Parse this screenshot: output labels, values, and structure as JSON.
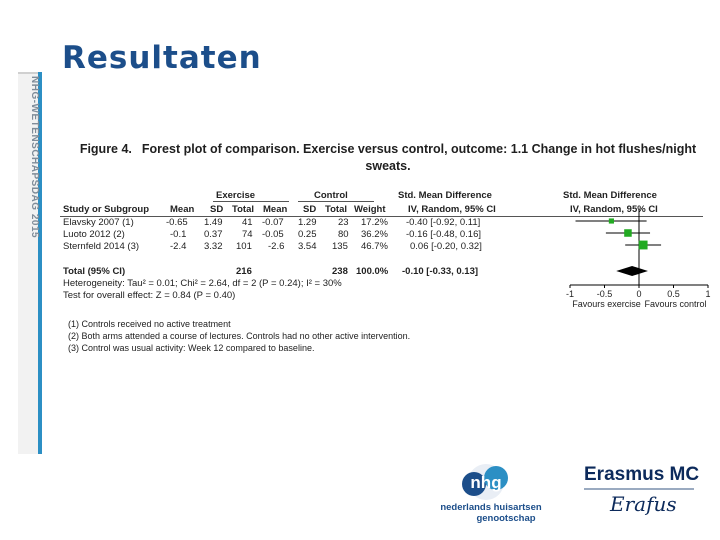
{
  "slide": {
    "title": "Resultaten",
    "sidebar_text": "NHG-WETENSCHAPSDAG 2015"
  },
  "figure": {
    "label": "Figure 4.",
    "title_line1": "Forest plot of comparison. Exercise versus control, outcome: 1.1 Change in hot flushes/night",
    "title_line2": "sweats.",
    "group_exercise": "Exercise",
    "group_control": "Control",
    "smd_header": "Std. Mean Difference",
    "smd_header_plot": "Std. Mean Difference",
    "columns": [
      "Study or Subgroup",
      "Mean",
      "SD",
      "Total",
      "Mean",
      "SD",
      "Total",
      "Weight",
      "IV, Random, 95% CI",
      "IV, Random, 95% CI"
    ],
    "studies": [
      {
        "name": "Elavsky 2007 (1)",
        "ex_mean": "-0.65",
        "ex_sd": "1.49",
        "ex_total": "41",
        "c_mean": "-0.07",
        "c_sd": "1.29",
        "c_total": "23",
        "weight": "17.2%",
        "ci": "-0.40 [-0.92, 0.11]",
        "est": -0.4,
        "lo": -0.92,
        "hi": 0.11,
        "w": 17.2
      },
      {
        "name": "Luoto 2012 (2)",
        "ex_mean": "-0.1",
        "ex_sd": "0.37",
        "ex_total": "74",
        "c_mean": "-0.05",
        "c_sd": "0.25",
        "c_total": "80",
        "weight": "36.2%",
        "ci": "-0.16 [-0.48, 0.16]",
        "est": -0.16,
        "lo": -0.48,
        "hi": 0.16,
        "w": 36.2
      },
      {
        "name": "Sternfeld 2014 (3)",
        "ex_mean": "-2.4",
        "ex_sd": "3.32",
        "ex_total": "101",
        "c_mean": "-2.6",
        "c_sd": "3.54",
        "c_total": "135",
        "weight": "46.7%",
        "ci": "0.06 [-0.20, 0.32]",
        "est": 0.06,
        "lo": -0.2,
        "hi": 0.32,
        "w": 46.7
      }
    ],
    "total": {
      "name": "Total (95% CI)",
      "ex_total": "216",
      "c_total": "238",
      "weight": "100.0%",
      "ci": "-0.10 [-0.33, 0.13]",
      "est": -0.1,
      "lo": -0.33,
      "hi": 0.13
    },
    "heterogeneity": "Heterogeneity: Tau² = 0.01; Chi² = 2.64, df = 2 (P = 0.24); I² = 30%",
    "overall_effect": "Test for overall effect: Z = 0.84 (P = 0.40)",
    "axis_ticks": [
      "-1",
      "-0.5",
      "0",
      "0.5",
      "1"
    ],
    "axis_min": -1,
    "axis_max": 1,
    "favours_left": "Favours exercise",
    "favours_right": "Favours control",
    "footnotes": [
      "(1) Controls received no active treatment",
      "(2) Both arms attended a course of lectures. Controls had no other active intervention.",
      "(3) Control was usual activity: Week 12 compared to baseline."
    ],
    "colors": {
      "study_marker": "#22aa22",
      "diamond": "#000000"
    }
  },
  "logos": {
    "nhg_mark": "nhg",
    "nhg_line1": "nederlands huisartsen",
    "nhg_line2": "genootschap",
    "emc_name": "Erasmus MC",
    "emc_signature": "Erafus"
  }
}
